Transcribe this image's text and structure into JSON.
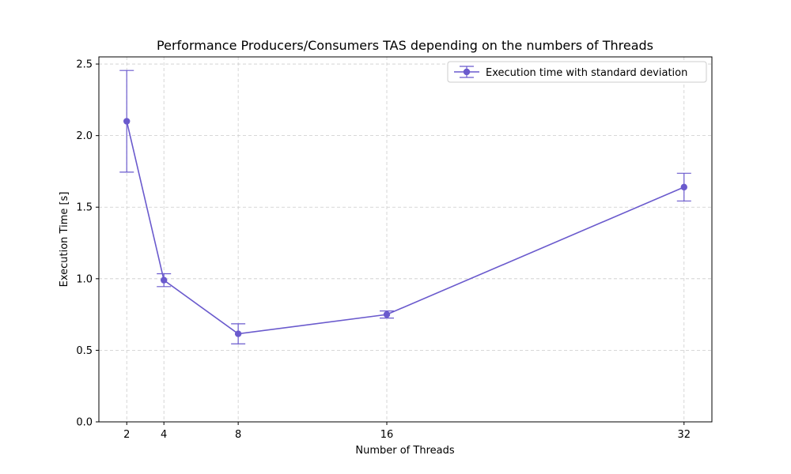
{
  "chart_data": {
    "type": "line",
    "title": "Performance Producers/Consumers TAS depending on the numbers of Threads",
    "xlabel": "Number of Threads",
    "ylabel": "Execution Time [s]",
    "x": [
      2,
      4,
      8,
      16,
      32
    ],
    "xticks": [
      "2",
      "4",
      "8",
      "16",
      "32"
    ],
    "yticks": [
      "0.0",
      "0.5",
      "1.0",
      "1.5",
      "2.0",
      "2.5"
    ],
    "xlim": [
      0.5,
      33.5
    ],
    "ylim": [
      0,
      2.55
    ],
    "grid": true,
    "legend_position": "top-right",
    "series": [
      {
        "name": "Execution time with standard deviation",
        "color": "#6a5acd",
        "values": [
          2.1,
          0.99,
          0.615,
          0.75,
          1.64
        ],
        "error": [
          0.355,
          0.045,
          0.07,
          0.025,
          0.097
        ]
      }
    ]
  }
}
